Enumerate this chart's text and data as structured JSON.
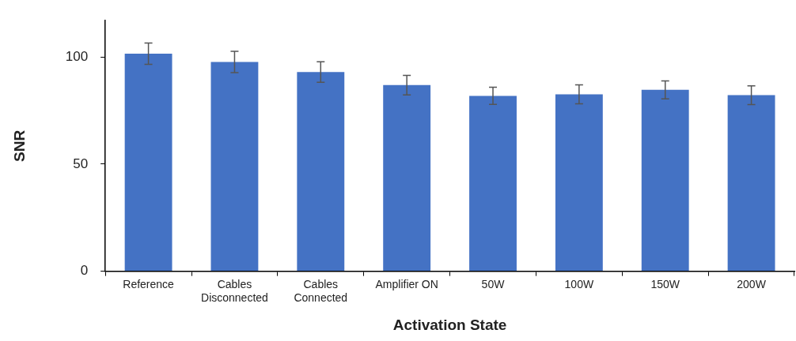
{
  "chart_data": {
    "type": "bar",
    "xlabel": "Activation State",
    "ylabel": "SNR",
    "categories": [
      "Reference",
      "Cables Disconnected",
      "Cables Connected",
      "Amplifier ON",
      "50W",
      "100W",
      "150W",
      "200W"
    ],
    "values": [
      101.6,
      97.7,
      93.0,
      86.9,
      81.9,
      82.6,
      84.7,
      82.2
    ],
    "errors": [
      5,
      5,
      4.8,
      4.6,
      4,
      4.4,
      4.2,
      4.4
    ],
    "color": "#4472c4",
    "ylim": [
      0,
      117
    ],
    "yticks": [
      0,
      50,
      100
    ],
    "grid": false,
    "legend": false
  }
}
